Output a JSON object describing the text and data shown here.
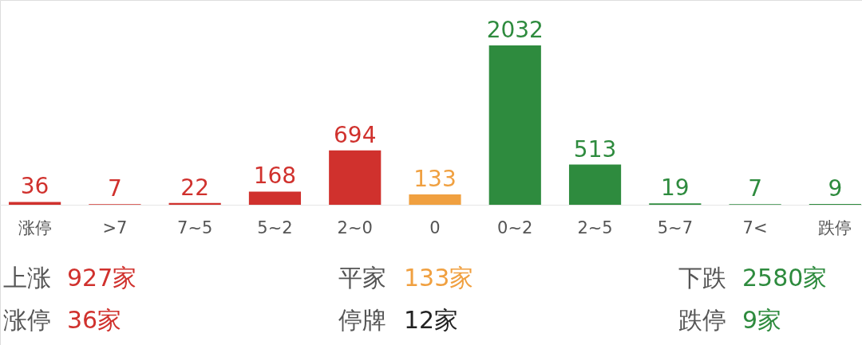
{
  "chart_data": {
    "type": "bar",
    "categories": [
      "涨停",
      ">7",
      "7~5",
      "5~2",
      "2~0",
      "0",
      "0~2",
      "2~5",
      "5~7",
      "7<",
      "跌停"
    ],
    "values": [
      36,
      7,
      22,
      168,
      694,
      133,
      2032,
      513,
      19,
      7,
      9
    ],
    "colors": [
      "#d0312d",
      "#d0312d",
      "#d0312d",
      "#d0312d",
      "#d0312d",
      "#f0a040",
      "#2e8b3e",
      "#2e8b3e",
      "#2e8b3e",
      "#2e8b3e",
      "#2e8b3e"
    ],
    "data_labels": true,
    "grid": false,
    "annotations": [
      "上涨",
      "927家",
      "平家",
      "133家",
      "下跌",
      "2580家",
      "涨停",
      "36家",
      "停牌",
      "12家",
      "跌停",
      "9家"
    ]
  }
}
